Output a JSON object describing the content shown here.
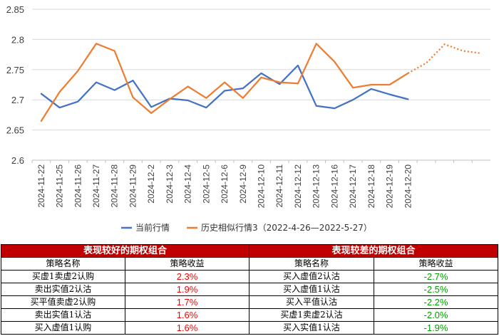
{
  "chart_data": {
    "type": "line",
    "categories": [
      "2024-11-22",
      "2024-11-25",
      "2024-11-26",
      "2024-11-27",
      "2024-11-28",
      "2024-11-29",
      "2024-12-2",
      "2024-12-3",
      "2024-12-4",
      "2024-12-5",
      "2024-12-6",
      "2024-12-9",
      "2024-12-10",
      "2024-12-11",
      "2024-12-12",
      "2024-12-13",
      "2024-12-16",
      "2024-12-17",
      "2024-12-18",
      "2024-12-19",
      "2024-12-20",
      "",
      "",
      "",
      ""
    ],
    "ylim": [
      2.6,
      2.85
    ],
    "yticks": [
      "2.6",
      "2.65",
      "2.7",
      "2.75",
      "2.8",
      "2.85"
    ],
    "ytick_values": [
      2.6,
      2.65,
      2.7,
      2.75,
      2.8,
      2.85
    ],
    "grid": "horizontal",
    "legend_position": "bottom",
    "series": [
      {
        "name": "当前行情",
        "color": "#4472c4",
        "style": "solid",
        "values": [
          2.71,
          2.687,
          2.697,
          2.729,
          2.716,
          2.732,
          2.688,
          2.702,
          2.699,
          2.687,
          2.715,
          2.719,
          2.744,
          2.726,
          2.757,
          2.69,
          2.686,
          2.7,
          2.718,
          2.709,
          2.701,
          null,
          null,
          null,
          null
        ]
      },
      {
        "name": "历史相似行情3（2022-4-26—2022-5-27）",
        "color": "#ed7d31",
        "style": "solid",
        "values": [
          2.665,
          2.713,
          2.748,
          2.793,
          2.781,
          2.704,
          2.678,
          2.701,
          2.722,
          2.703,
          2.729,
          2.703,
          2.737,
          2.729,
          2.727,
          2.793,
          2.763,
          2.72,
          2.725,
          2.725,
          2.744,
          null,
          null,
          null,
          null
        ]
      },
      {
        "name": "",
        "color": "#ed7d31",
        "style": "dotted",
        "values": [
          null,
          null,
          null,
          null,
          null,
          null,
          null,
          null,
          null,
          null,
          null,
          null,
          null,
          null,
          null,
          null,
          null,
          null,
          null,
          null,
          2.744,
          2.761,
          2.792,
          2.781,
          2.777
        ]
      }
    ]
  },
  "tables": {
    "left": {
      "title": "表现较好的期权组合",
      "col1": "策略名称",
      "col2": "策略收益",
      "rows": [
        {
          "name": "买虚1卖虚2认购",
          "value": "2.3%"
        },
        {
          "name": "卖出实值2认沽",
          "value": "1.9%"
        },
        {
          "name": "买平值卖虚2认购",
          "value": "1.7%"
        },
        {
          "name": "卖出实值1认沽",
          "value": "1.6%"
        },
        {
          "name": "买入虚值1认购",
          "value": "1.6%"
        }
      ]
    },
    "right": {
      "title": "表现较差的期权组合",
      "col1": "策略名称",
      "col2": "策略收益",
      "rows": [
        {
          "name": "买入虚值2认沽",
          "value": "-2.7%"
        },
        {
          "name": "买入虚值1认沽",
          "value": "-2.5%"
        },
        {
          "name": "买入平值认沽",
          "value": "-2.2%"
        },
        {
          "name": "买虚1卖虚2认沽",
          "value": "-2.0%"
        },
        {
          "name": "买入实值1认沽",
          "value": "-1.9%"
        }
      ]
    }
  }
}
